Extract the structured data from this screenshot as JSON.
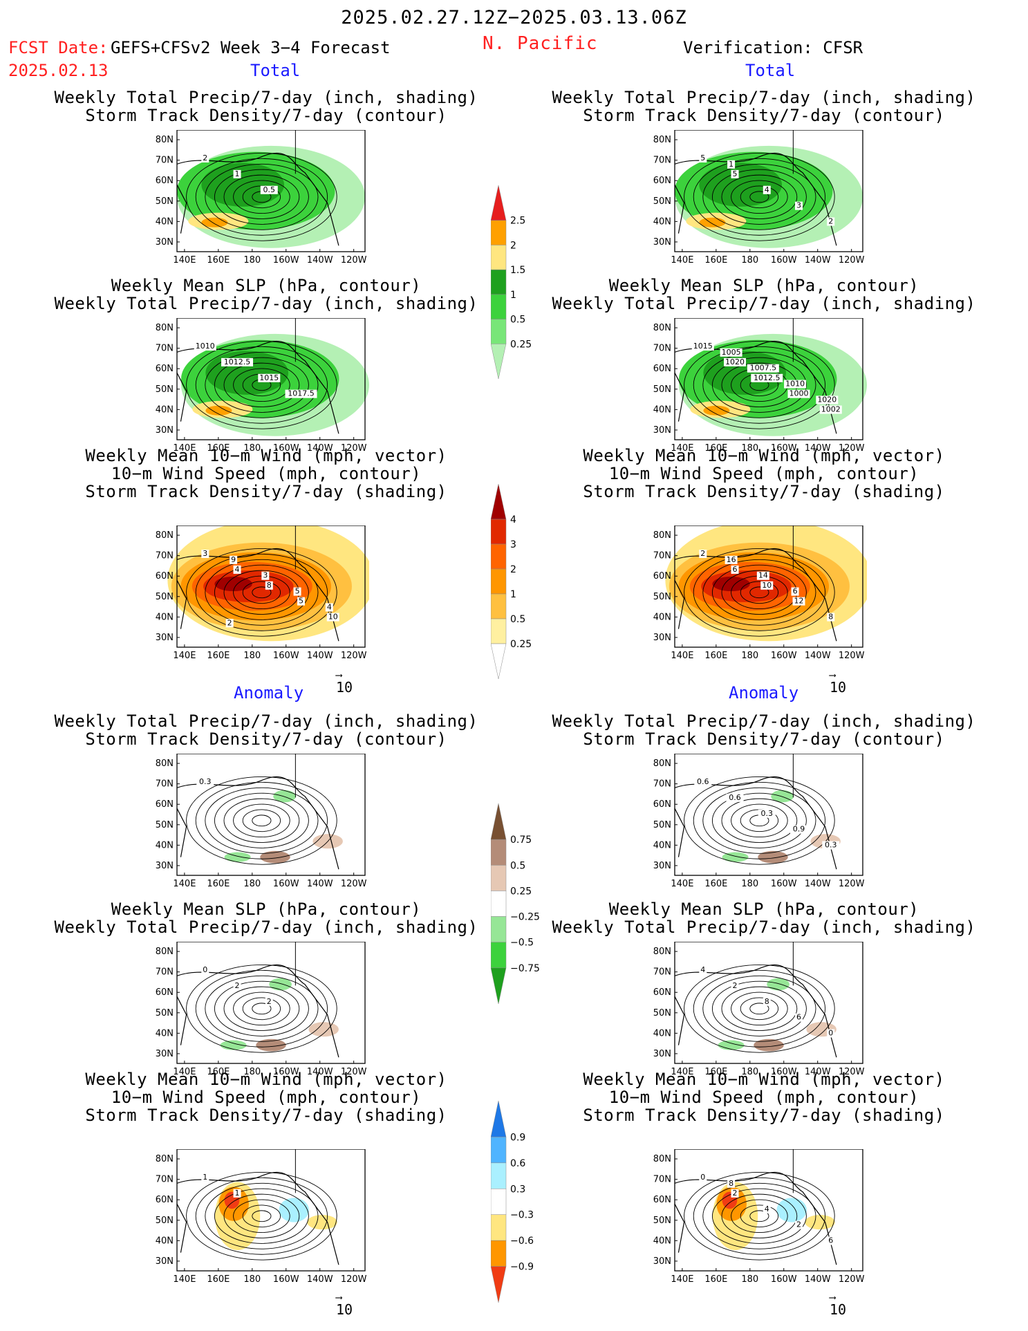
{
  "header": {
    "date_range": "2025.02.27.12Z−2025.03.13.06Z",
    "fcst_label": "FCST Date:",
    "fcst_source": "GEFS+CFSv2 Week 3−4 Forecast",
    "fcst_date": "2025.02.13",
    "region": "N. Pacific",
    "verification": "Verification: CFSR"
  },
  "sections": {
    "total": "Total",
    "anomaly": "Anomaly"
  },
  "titles": {
    "precip_storm": [
      "Weekly Total Precip/7-day (inch, shading)",
      "Storm Track Density/7-day (contour)"
    ],
    "slp_precip": [
      "Weekly Mean SLP (hPa, contour)",
      "Weekly Total Precip/7-day (inch, shading)"
    ],
    "wind_storm": [
      "Weekly Mean 10−m Wind (mph, vector)",
      "10−m Wind Speed (mph, contour)",
      "Storm Track Density/7-day (shading)"
    ]
  },
  "axes": {
    "lat_labels": [
      "80N",
      "70N",
      "60N",
      "50N",
      "40N",
      "30N"
    ],
    "lon_labels": [
      "140E",
      "160E",
      "180",
      "160W",
      "140W",
      "120W"
    ],
    "vector_ref": "10"
  },
  "colorbars": {
    "precip_total": {
      "labels": [
        "0.25",
        "0.5",
        "1",
        "1.5",
        "2",
        "2.5"
      ],
      "colors": [
        "#b4f0b4",
        "#78e678",
        "#3cd23c",
        "#1ea01e",
        "#ffe680",
        "#ffa000",
        "#e61e1e"
      ]
    },
    "storm_total": {
      "labels": [
        "0.25",
        "0.5",
        "1",
        "2",
        "3",
        "4"
      ],
      "colors": [
        "#ffffff",
        "#fff0a0",
        "#ffc040",
        "#ff9600",
        "#ff6400",
        "#e12800",
        "#a00000"
      ]
    },
    "precip_anom": {
      "labels": [
        "0.75",
        "0.5",
        "0.25",
        "−0.25",
        "−0.5",
        "−0.75"
      ],
      "colors": [
        "#1ea01e",
        "#3cd23c",
        "#96e696",
        "#ffffff",
        "#e6c8b4",
        "#b48c78",
        "#785032"
      ]
    },
    "storm_anom": {
      "labels": [
        "0.9",
        "0.6",
        "0.3",
        "−0.3",
        "−0.6",
        "−0.9"
      ],
      "colors": [
        "#f03c14",
        "#ff9600",
        "#ffe680",
        "#ffffff",
        "#aaf0ff",
        "#50b4ff",
        "#1e78e6"
      ]
    }
  },
  "panels": [
    {
      "id": "fcst-total-precip",
      "title": "precip_storm",
      "kind": "precip",
      "labels": [
        "2",
        "1",
        "0.5"
      ]
    },
    {
      "id": "fcst-total-slp",
      "title": "slp_precip",
      "kind": "precip",
      "labels": [
        "1010",
        "1012.5",
        "1015",
        "1017.5"
      ]
    },
    {
      "id": "fcst-total-wind",
      "title": "wind_storm",
      "kind": "storm",
      "labels": [
        "3",
        "4",
        "8",
        "5",
        "10",
        "9",
        "3",
        "5",
        "4",
        "2"
      ]
    },
    {
      "id": "fcst-anom-precip",
      "title": "precip_storm",
      "kind": "panom",
      "labels": [
        "0.3"
      ]
    },
    {
      "id": "fcst-anom-slp",
      "title": "slp_precip",
      "kind": "panom",
      "labels": [
        "0",
        "2",
        "2"
      ]
    },
    {
      "id": "fcst-anom-wind",
      "title": "wind_storm",
      "kind": "sanom",
      "labels": [
        "1",
        "1"
      ]
    },
    {
      "id": "verif-total-precip",
      "title": "precip_storm",
      "kind": "precip",
      "labels": [
        "5",
        "5",
        "4",
        "3",
        "2",
        "1"
      ]
    },
    {
      "id": "verif-total-slp",
      "title": "slp_precip",
      "kind": "precip",
      "labels": [
        "1015",
        "1020",
        "1012.5",
        "1000",
        "1002",
        "1005",
        "1007.5",
        "1010",
        "1020"
      ]
    },
    {
      "id": "verif-total-wind",
      "title": "wind_storm",
      "kind": "storm",
      "labels": [
        "2",
        "6",
        "10",
        "12",
        "8",
        "16",
        "14",
        "6"
      ]
    },
    {
      "id": "verif-anom-precip",
      "title": "precip_storm",
      "kind": "panom",
      "labels": [
        "0.6",
        "0.6",
        "0.3",
        "0.9",
        "0.3"
      ]
    },
    {
      "id": "verif-anom-slp",
      "title": "slp_precip",
      "kind": "panom",
      "labels": [
        "4",
        "2",
        "8",
        "6",
        "0"
      ]
    },
    {
      "id": "verif-anom-wind",
      "title": "wind_storm",
      "kind": "sanom",
      "labels": [
        "0",
        "2",
        "4",
        "2",
        "6",
        "8"
      ]
    }
  ]
}
